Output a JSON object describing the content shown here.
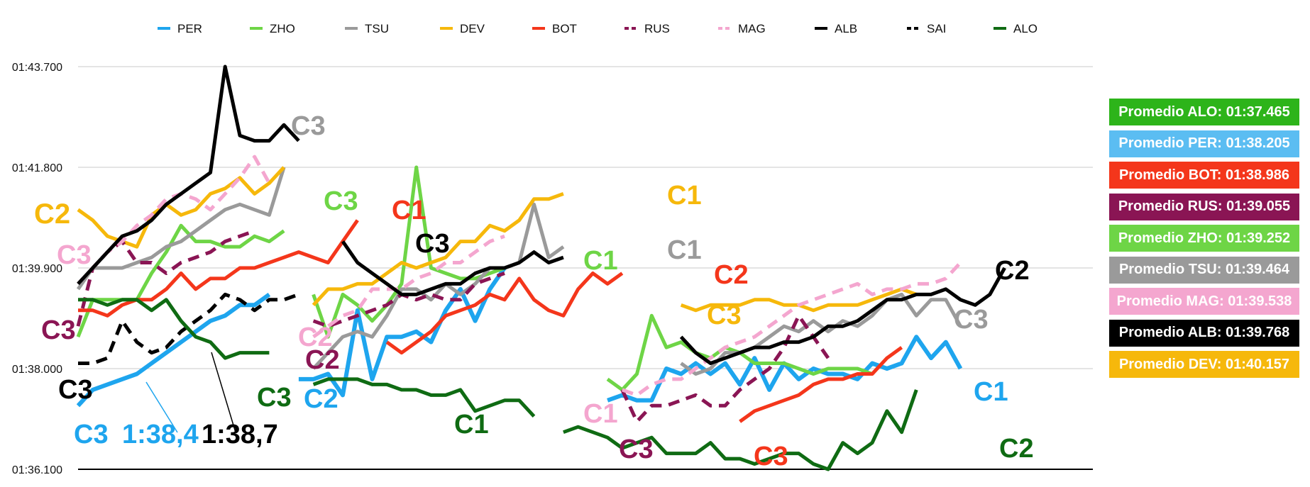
{
  "chart_data": {
    "type": "line",
    "xlabel": "",
    "ylabel": "",
    "y_ticks": [
      "01:36.100",
      "01:38.000",
      "01:39.900",
      "01:41.800",
      "01:43.700"
    ],
    "ylim": [
      96.1,
      103.7
    ],
    "x": [
      1,
      2,
      3,
      4,
      5,
      6,
      7,
      8,
      9,
      10,
      11,
      12,
      13,
      14,
      15,
      16,
      17,
      18,
      19,
      20,
      21,
      22,
      23,
      24,
      25,
      26,
      27,
      28,
      29,
      30,
      31,
      32,
      33,
      34,
      35,
      36,
      37,
      38,
      39,
      40,
      41,
      42,
      43,
      44,
      45,
      46,
      47,
      48,
      49,
      50,
      51,
      52,
      53,
      54,
      55,
      56,
      57,
      58,
      59,
      60,
      61,
      62,
      63,
      64,
      65,
      66,
      67,
      68,
      69,
      70
    ],
    "grid": true,
    "legend_position": "top",
    "series": [
      {
        "name": "PER",
        "color": "#1ea5ee",
        "style": "solid",
        "width": 6,
        "values": [
          97.3,
          97.6,
          97.7,
          97.8,
          97.9,
          98.1,
          98.3,
          98.5,
          98.7,
          98.9,
          99.0,
          99.2,
          99.2,
          99.4,
          null,
          97.8,
          97.8,
          97.9,
          97.5,
          99.1,
          97.8,
          98.6,
          98.6,
          98.7,
          98.5,
          99.1,
          99.5,
          98.9,
          99.5,
          99.9,
          null,
          null,
          null,
          null,
          null,
          null,
          97.4,
          97.5,
          97.4,
          97.4,
          98.0,
          97.9,
          98.1,
          97.9,
          98.1,
          97.7,
          98.2,
          97.6,
          98.1,
          97.8,
          98.0,
          97.9,
          97.9,
          97.8,
          98.1,
          98.0,
          98.1,
          98.6,
          98.2,
          98.5,
          98.0,
          null,
          null,
          null,
          null,
          null,
          null,
          null,
          null,
          null
        ]
      },
      {
        "name": "ZHO",
        "color": "#6ed546",
        "style": "solid",
        "width": 5,
        "values": [
          98.6,
          99.3,
          99.3,
          99.3,
          99.3,
          99.8,
          100.2,
          100.7,
          100.4,
          100.4,
          100.3,
          100.3,
          100.5,
          100.4,
          100.6,
          null,
          99.4,
          98.6,
          99.4,
          99.2,
          98.9,
          99.2,
          99.6,
          101.8,
          99.9,
          99.8,
          99.7,
          99.7,
          99.8,
          99.9,
          null,
          null,
          null,
          null,
          null,
          null,
          97.8,
          97.6,
          97.9,
          99.0,
          98.4,
          98.5,
          98.3,
          98.2,
          98.4,
          98.3,
          98.1,
          98.1,
          98.1,
          98.0,
          97.9,
          98.0,
          98.0,
          98.0,
          97.9,
          null,
          null,
          null,
          null,
          null,
          null,
          null,
          null,
          null,
          null,
          null,
          null,
          null,
          null,
          null
        ]
      },
      {
        "name": "TSU",
        "color": "#9a9a9a",
        "style": "solid",
        "width": 5,
        "values": [
          99.5,
          99.9,
          99.9,
          99.9,
          100.0,
          100.1,
          100.3,
          100.4,
          100.6,
          100.8,
          101.0,
          101.1,
          101.0,
          100.9,
          101.8,
          null,
          98.0,
          98.3,
          98.6,
          98.7,
          98.6,
          99.0,
          99.5,
          99.5,
          99.3,
          99.6,
          99.4,
          99.6,
          99.9,
          99.9,
          100.0,
          101.1,
          100.1,
          100.3,
          null,
          null,
          null,
          null,
          null,
          null,
          null,
          98.1,
          97.9,
          98.0,
          98.3,
          98.3,
          98.4,
          98.6,
          98.8,
          98.7,
          98.9,
          98.7,
          98.9,
          98.8,
          99.0,
          99.3,
          99.4,
          99.0,
          99.3,
          99.3,
          98.8,
          null,
          null,
          null,
          null,
          null,
          null,
          null,
          null,
          null
        ]
      },
      {
        "name": "DEV",
        "color": "#f6b80b",
        "style": "solid",
        "width": 5,
        "values": [
          101.0,
          100.8,
          100.5,
          100.4,
          100.3,
          100.9,
          101.1,
          100.9,
          101.0,
          101.3,
          101.4,
          101.6,
          101.3,
          101.5,
          101.8,
          null,
          99.2,
          99.5,
          99.5,
          99.6,
          99.6,
          99.8,
          100.0,
          99.9,
          100.0,
          100.1,
          100.4,
          100.4,
          100.7,
          100.6,
          100.8,
          101.2,
          101.2,
          101.3,
          null,
          null,
          null,
          null,
          null,
          null,
          null,
          99.2,
          99.1,
          99.2,
          99.2,
          99.2,
          99.3,
          99.3,
          99.2,
          99.2,
          99.1,
          99.2,
          99.2,
          99.2,
          99.3,
          99.4,
          99.5,
          99.4,
          null,
          null,
          null,
          null,
          null,
          null,
          null,
          null,
          null,
          null,
          null,
          null
        ]
      },
      {
        "name": "BOT",
        "color": "#f4361b",
        "style": "solid",
        "width": 5,
        "values": [
          99.1,
          99.1,
          99.0,
          99.2,
          99.3,
          99.3,
          99.5,
          99.8,
          99.5,
          99.7,
          99.7,
          99.9,
          99.9,
          100.0,
          100.1,
          100.2,
          100.1,
          100.0,
          100.4,
          100.8,
          null,
          98.5,
          98.3,
          98.5,
          98.7,
          99.0,
          99.1,
          99.2,
          99.4,
          99.3,
          99.7,
          99.3,
          99.1,
          99.0,
          99.5,
          99.8,
          99.6,
          99.8,
          null,
          null,
          null,
          null,
          null,
          null,
          null,
          97.0,
          97.2,
          97.3,
          97.4,
          97.5,
          97.7,
          97.8,
          97.8,
          97.9,
          97.9,
          98.2,
          98.4,
          null,
          null,
          null,
          null,
          null,
          null,
          null,
          null,
          null,
          null,
          null,
          null,
          null
        ]
      },
      {
        "name": "RUS",
        "color": "#8a1554",
        "style": "dash",
        "width": 5,
        "values": [
          98.8,
          99.9,
          100.2,
          100.4,
          100.0,
          100.0,
          99.8,
          100.0,
          100.1,
          100.2,
          100.4,
          100.5,
          100.6,
          null,
          null,
          null,
          98.9,
          98.8,
          98.9,
          99.0,
          99.1,
          99.2,
          99.4,
          99.3,
          99.4,
          99.3,
          99.3,
          99.6,
          99.7,
          99.8,
          null,
          null,
          null,
          null,
          null,
          null,
          null,
          97.6,
          97.0,
          97.3,
          97.3,
          97.4,
          97.5,
          97.3,
          97.3,
          97.6,
          97.8,
          98.0,
          98.4,
          99.0,
          98.6,
          98.2,
          null,
          null,
          null,
          null,
          null,
          null,
          null,
          null,
          null,
          null,
          null,
          null,
          null,
          null,
          null,
          null,
          null,
          null
        ]
      },
      {
        "name": "MAG",
        "color": "#f4a6cf",
        "style": "dash",
        "width": 5,
        "values": [
          99.6,
          99.9,
          100.2,
          100.4,
          100.7,
          100.9,
          101.2,
          101.3,
          101.2,
          101.0,
          101.3,
          101.6,
          102.0,
          101.5,
          null,
          null,
          98.6,
          98.8,
          99.0,
          99.1,
          99.5,
          99.5,
          99.5,
          99.7,
          99.8,
          100.0,
          100.0,
          100.2,
          100.4,
          100.5,
          null,
          null,
          null,
          null,
          null,
          null,
          null,
          97.6,
          97.5,
          97.7,
          97.8,
          97.8,
          98.0,
          98.2,
          98.4,
          98.5,
          98.6,
          98.8,
          99.0,
          99.2,
          99.3,
          99.4,
          99.5,
          99.6,
          99.4,
          99.5,
          99.5,
          99.6,
          99.6,
          99.7,
          100.0,
          null,
          null,
          null,
          null,
          null,
          null,
          null,
          null,
          null
        ]
      },
      {
        "name": "ALB",
        "color": "#000000",
        "style": "solid",
        "width": 5,
        "values": [
          99.6,
          99.9,
          100.2,
          100.5,
          100.6,
          100.8,
          101.1,
          101.3,
          101.5,
          101.7,
          103.7,
          102.4,
          102.3,
          102.3,
          102.6,
          102.3,
          null,
          null,
          100.4,
          100.0,
          99.8,
          99.6,
          99.4,
          99.4,
          99.5,
          99.6,
          99.6,
          99.8,
          99.9,
          99.9,
          100.0,
          100.2,
          100.0,
          100.1,
          null,
          null,
          null,
          null,
          null,
          null,
          null,
          98.6,
          98.3,
          98.1,
          98.2,
          98.3,
          98.4,
          98.4,
          98.5,
          98.5,
          98.6,
          98.8,
          98.8,
          98.9,
          99.1,
          99.3,
          99.3,
          99.4,
          99.4,
          99.5,
          99.3,
          99.2,
          99.4,
          99.9,
          null,
          null,
          null,
          null,
          null,
          null
        ]
      },
      {
        "name": "SAI",
        "color": "#000000",
        "style": "dash",
        "width": 5,
        "values": [
          98.1,
          98.1,
          98.2,
          98.9,
          98.5,
          98.3,
          98.4,
          98.7,
          98.9,
          99.1,
          99.4,
          99.3,
          99.1,
          99.3,
          99.3,
          99.4,
          null,
          null,
          null,
          null,
          null,
          null,
          null,
          null,
          null,
          null,
          null,
          null,
          null,
          null,
          null,
          null,
          null,
          null,
          null,
          null,
          null,
          null,
          null,
          null,
          null,
          null,
          null,
          null,
          null,
          null,
          null,
          null,
          null,
          null,
          null,
          null,
          null,
          null,
          null,
          null,
          null,
          null,
          null,
          null,
          null,
          null,
          null,
          null,
          null,
          null,
          null,
          null,
          null,
          null
        ]
      },
      {
        "name": "ALO",
        "color": "#0f6b13",
        "style": "solid",
        "width": 5,
        "values": [
          99.3,
          99.3,
          99.2,
          99.3,
          99.3,
          99.1,
          99.3,
          98.9,
          98.6,
          98.5,
          98.2,
          98.3,
          98.3,
          98.3,
          null,
          null,
          97.7,
          97.8,
          97.8,
          97.8,
          97.7,
          97.7,
          97.6,
          97.6,
          97.5,
          97.5,
          97.6,
          97.2,
          97.3,
          97.4,
          97.4,
          97.1,
          null,
          96.8,
          96.9,
          96.8,
          96.7,
          96.5,
          96.6,
          96.7,
          96.4,
          96.4,
          96.4,
          96.6,
          96.3,
          96.3,
          96.2,
          96.3,
          96.4,
          96.4,
          96.2,
          96.1,
          96.6,
          96.4,
          96.6,
          97.2,
          96.8,
          97.6,
          null,
          null,
          null,
          null,
          null,
          null,
          null,
          null,
          null,
          null,
          null,
          null
        ]
      }
    ],
    "legend": [
      {
        "name": "PER",
        "color": "#1ea5ee",
        "style": "solid"
      },
      {
        "name": "ZHO",
        "color": "#6ed546",
        "style": "solid"
      },
      {
        "name": "TSU",
        "color": "#9a9a9a",
        "style": "solid"
      },
      {
        "name": "DEV",
        "color": "#f6b80b",
        "style": "solid"
      },
      {
        "name": "BOT",
        "color": "#f4361b",
        "style": "solid"
      },
      {
        "name": "RUS",
        "color": "#8a1554",
        "style": "dash"
      },
      {
        "name": "MAG",
        "color": "#f4a6cf",
        "style": "dash"
      },
      {
        "name": "ALB",
        "color": "#000000",
        "style": "solid"
      },
      {
        "name": "SAI",
        "color": "#000000",
        "style": "dash"
      },
      {
        "name": "ALO",
        "color": "#0f6b13",
        "style": "solid"
      }
    ],
    "annotations": [
      {
        "text": "C2",
        "color": "#f6b80b"
      },
      {
        "text": "C3",
        "color": "#f4a6cf"
      },
      {
        "text": "C3",
        "color": "#8a1554"
      },
      {
        "text": "C3",
        "color": "#000000"
      },
      {
        "text": "C3",
        "color": "#1ea5ee"
      },
      {
        "text": "1:38,4",
        "color": "#1ea5ee"
      },
      {
        "text": "1:38,7",
        "color": "#000000"
      },
      {
        "text": "C3",
        "color": "#9a9a9a"
      },
      {
        "text": "C3",
        "color": "#6ed546"
      },
      {
        "text": "C3",
        "color": "#0f6b13"
      },
      {
        "text": "C1",
        "color": "#f4361b"
      },
      {
        "text": "C3",
        "color": "#000000"
      },
      {
        "text": "C2",
        "color": "#f4a6cf"
      },
      {
        "text": "C2",
        "color": "#8a1554"
      },
      {
        "text": "C2",
        "color": "#1ea5ee"
      },
      {
        "text": "C1",
        "color": "#0f6b13"
      },
      {
        "text": "C1",
        "color": "#6ed546"
      },
      {
        "text": "C1",
        "color": "#f6b80b"
      },
      {
        "text": "C1",
        "color": "#9a9a9a"
      },
      {
        "text": "C2",
        "color": "#f4361b"
      },
      {
        "text": "C1",
        "color": "#f4a6cf"
      },
      {
        "text": "C3",
        "color": "#8a1554"
      },
      {
        "text": "C3",
        "color": "#f6b80b"
      },
      {
        "text": "C3",
        "color": "#f4361b"
      },
      {
        "text": "C3",
        "color": "#9a9a9a"
      },
      {
        "text": "C2",
        "color": "#000000"
      },
      {
        "text": "C1",
        "color": "#1ea5ee"
      },
      {
        "text": "C2",
        "color": "#0f6b13"
      }
    ],
    "averages": [
      {
        "text": "Promedio ALO: 01:37.465",
        "bg": "#2db41a"
      },
      {
        "text": "Promedio PER: 01:38.205",
        "bg": "#5bbdf2"
      },
      {
        "text": "Promedio BOT: 01:38.986",
        "bg": "#f4361b"
      },
      {
        "text": "Promedio RUS: 01:39.055",
        "bg": "#8a1554"
      },
      {
        "text": "Promedio ZHO: 01:39.252",
        "bg": "#6ed546"
      },
      {
        "text": "Promedio TSU: 01:39.464",
        "bg": "#9a9a9a"
      },
      {
        "text": "Promedio MAG: 01:39.538",
        "bg": "#f4a6cf"
      },
      {
        "text": "Promedio ALB: 01:39.768",
        "bg": "#000000"
      },
      {
        "text": "Promedio DEV: 01:40.157",
        "bg": "#f6b80b"
      }
    ]
  }
}
